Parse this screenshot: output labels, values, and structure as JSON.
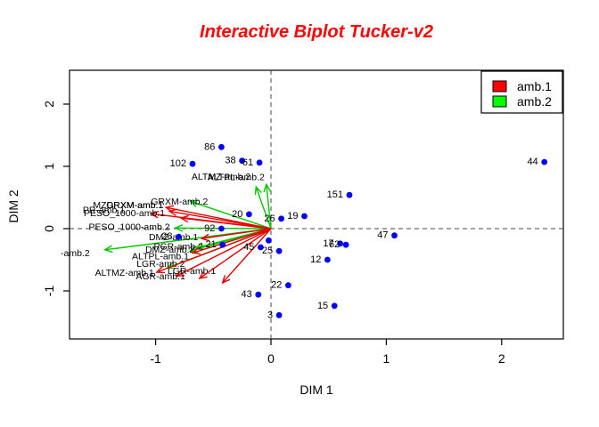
{
  "title": {
    "text": "Interactive Biplot Tucker-v2",
    "color": "#FF0000"
  },
  "legend": {
    "items": [
      {
        "label": "amb.1",
        "color": "#FF0000"
      },
      {
        "label": "amb.2",
        "color": "#00FF00"
      }
    ]
  },
  "chart_data": {
    "type": "scatter",
    "subtype": "biplot",
    "title": "Interactive Biplot Tucker-v2",
    "xlabel": "DIM 1",
    "ylabel": "DIM 2",
    "xlim": [
      -1.75,
      2.54
    ],
    "ylim": [
      -1.77,
      2.54
    ],
    "x_ticks": [
      -1,
      0,
      1,
      2
    ],
    "y_ticks": [
      -1,
      0,
      1,
      2
    ],
    "zero_lines": true,
    "grid": false,
    "legend_position": "top-right",
    "point_color": "#0000FF",
    "groups": {
      "amb.1": "#E60000",
      "amb.2": "#00C800"
    },
    "points": [
      {
        "label": "86",
        "x": -0.43,
        "y": 1.31
      },
      {
        "label": "102",
        "x": -0.68,
        "y": 1.04
      },
      {
        "label": "38",
        "x": -0.25,
        "y": 1.09
      },
      {
        "label": "61",
        "x": -0.1,
        "y": 1.06
      },
      {
        "label": "44",
        "x": 2.37,
        "y": 1.07
      },
      {
        "label": "151",
        "x": 0.68,
        "y": 0.54
      },
      {
        "label": "19",
        "x": 0.29,
        "y": 0.2
      },
      {
        "label": "20",
        "x": -0.19,
        "y": 0.23
      },
      {
        "label": "26",
        "x": 0.09,
        "y": 0.16
      },
      {
        "label": "92",
        "x": -0.43,
        "y": 0.0
      },
      {
        "label": "28",
        "x": -0.8,
        "y": -0.13
      },
      {
        "label": "21",
        "x": -0.42,
        "y": -0.26
      },
      {
        "label": "",
        "x": -0.02,
        "y": -0.19
      },
      {
        "label": "45",
        "x": -0.09,
        "y": -0.3
      },
      {
        "label": "25",
        "x": 0.07,
        "y": -0.36
      },
      {
        "label": "17",
        "x": 0.6,
        "y": -0.24
      },
      {
        "label": "62",
        "x": 0.65,
        "y": -0.26
      },
      {
        "label": "12",
        "x": 0.49,
        "y": -0.5
      },
      {
        "label": "47",
        "x": 1.07,
        "y": -0.11
      },
      {
        "label": "43",
        "x": -0.11,
        "y": -1.06
      },
      {
        "label": "22",
        "x": 0.15,
        "y": -0.91
      },
      {
        "label": "3",
        "x": 0.07,
        "y": -1.39
      },
      {
        "label": "15",
        "x": 0.55,
        "y": -1.24
      }
    ],
    "arrows": [
      {
        "label": "GRXM-amb.2",
        "group": "amb.2",
        "x": -0.7,
        "y": 0.44,
        "dx": 20,
        "dy": 4,
        "anchor": "end"
      },
      {
        "label": "ALTMZ-amb.2",
        "group": "amb.2",
        "x": -0.13,
        "y": 0.67,
        "dx": -6,
        "dy": -8,
        "anchor": "end"
      },
      {
        "label": "ALTPL-amb.2",
        "group": "amb.2",
        "x": -0.04,
        "y": 0.71,
        "dx": -2,
        "dy": -5,
        "anchor": "end"
      },
      {
        "label": "PESO_1000-amb.2",
        "group": "amb.2",
        "x": -0.83,
        "y": 0.01,
        "dx": -6,
        "dy": 2,
        "anchor": "end"
      },
      {
        "label": "-amb.2",
        "group": "amb.2",
        "x": -1.44,
        "y": -0.34,
        "dx": -17,
        "dy": 7,
        "anchor": "end"
      },
      {
        "label": "DMZ-amb.2",
        "group": "amb.2",
        "x": -0.7,
        "y": -0.36,
        "dx": 5,
        "dy": 2,
        "anchor": "end"
      },
      {
        "label": "PGR-amb.2",
        "group": "amb.2",
        "x": -0.65,
        "y": -0.31,
        "dx": 8,
        "dy": 2,
        "anchor": "end"
      },
      {
        "label": "LGR-amb.2",
        "group": "amb.2",
        "x": -0.9,
        "y": -0.63,
        "dx": 20,
        "dy": -1,
        "anchor": "end"
      },
      {
        "label": "MZDRXM-amb.1",
        "group": "amb.1",
        "x": -0.91,
        "y": 0.34,
        "dx": -3,
        "dy": 1,
        "anchor": "end"
      },
      {
        "label": "GRXM-amb.1",
        "group": "amb.1",
        "x": -1.04,
        "y": 0.24,
        "dx": 14,
        "dy": -6,
        "anchor": "end"
      },
      {
        "label": "PR-amb.1",
        "group": "amb.1",
        "x": -0.88,
        "y": 0.28,
        "dx": -50,
        "dy": 2,
        "anchor": "end"
      },
      {
        "label": "PESO_1000-amb.1",
        "group": "amb.1",
        "x": -0.78,
        "y": 0.17,
        "dx": -18,
        "dy": -2,
        "anchor": "end"
      },
      {
        "label": "DMZ-amb.1",
        "group": "amb.1",
        "x": -0.6,
        "y": -0.16,
        "dx": -4,
        "dy": 2,
        "anchor": "end"
      },
      {
        "label": "ALTPL-amb.1",
        "group": "amb.1",
        "x": -0.68,
        "y": -0.39,
        "dx": -4,
        "dy": 7,
        "anchor": "end"
      },
      {
        "label": "ALTMZ-amb.1",
        "group": "amb.1",
        "x": -0.99,
        "y": -0.7,
        "dx": -3,
        "dy": 4,
        "anchor": "end"
      },
      {
        "label": "LGR-amb.1",
        "group": "amb.1",
        "x": -0.82,
        "y": -0.76,
        "dx": -10,
        "dy": -2,
        "anchor": "start"
      },
      {
        "label": "AGR-amb.1",
        "group": "amb.1",
        "x": -0.62,
        "y": -0.8,
        "dx": -16,
        "dy": 1,
        "anchor": "end"
      },
      {
        "label": "",
        "group": "amb.1",
        "x": -0.42,
        "y": -0.87,
        "dx": 0,
        "dy": 0,
        "anchor": "end"
      }
    ]
  },
  "axes": {
    "x": {
      "label": "DIM 1"
    },
    "y": {
      "label": "DIM 2"
    }
  }
}
